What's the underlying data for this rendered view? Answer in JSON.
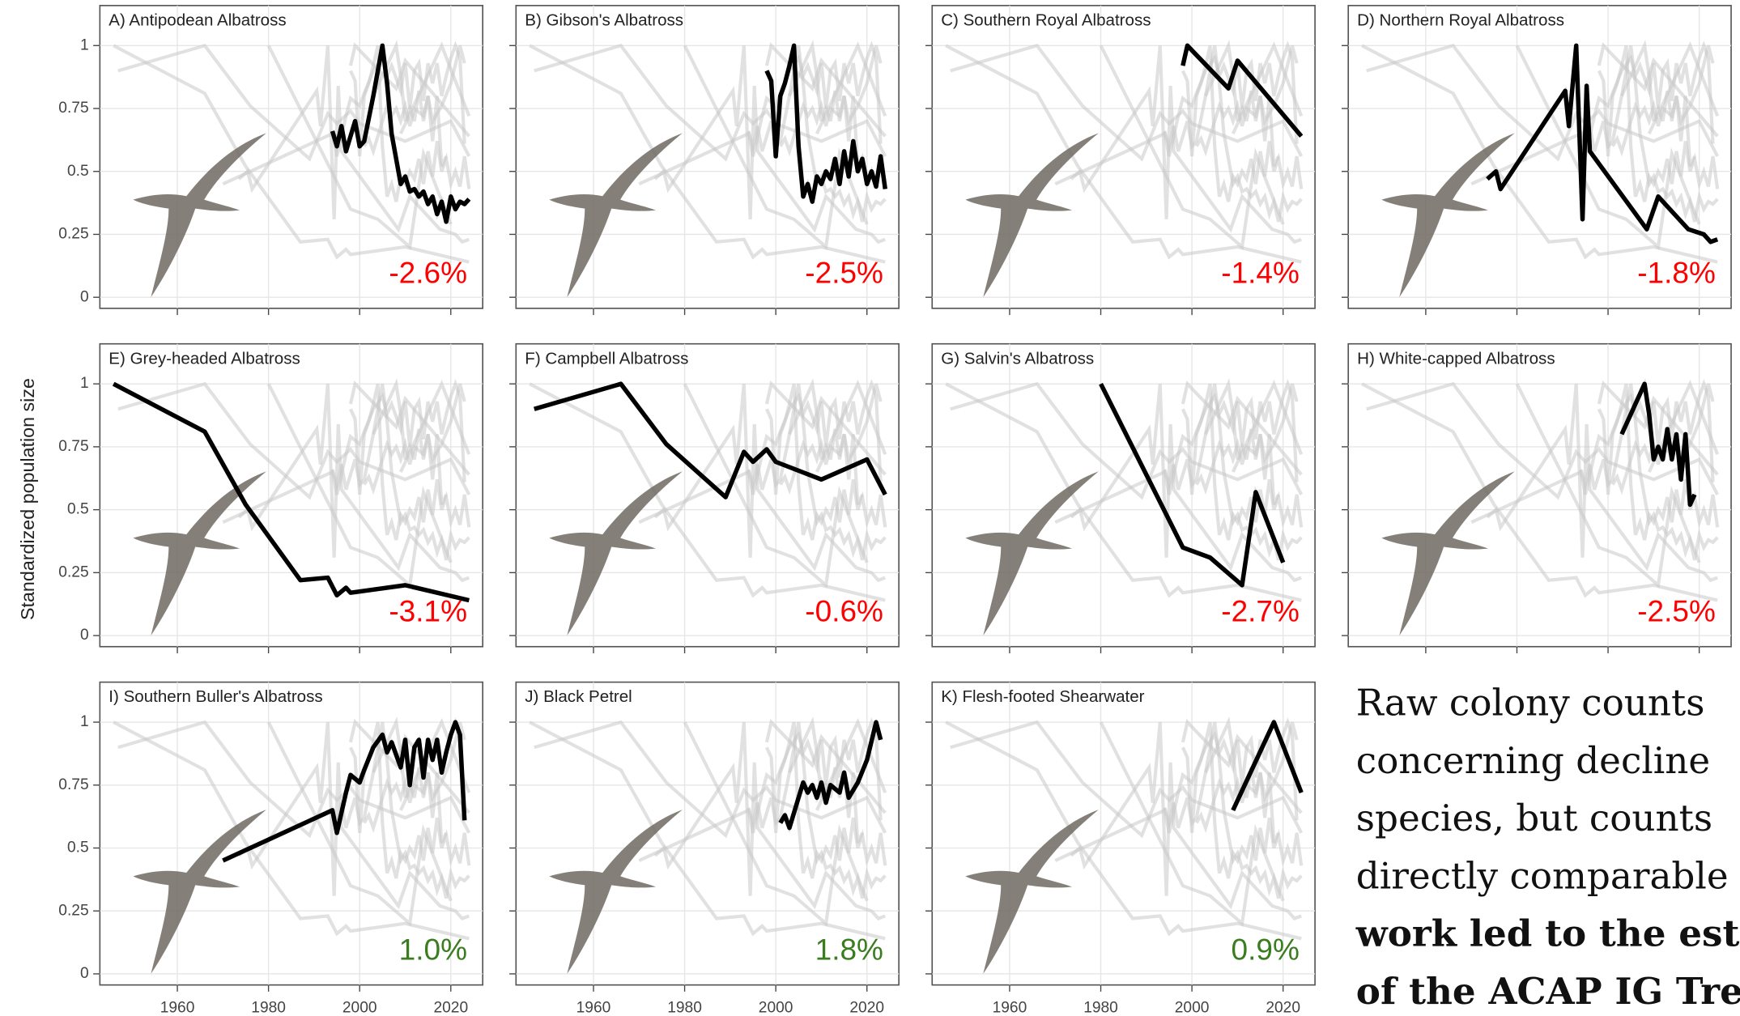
{
  "y_label": "Standardized population size",
  "side_text": {
    "lines": [
      "Raw colony counts",
      "concerning decline",
      "species, but counts",
      "directly comparable"
    ],
    "bold_lines": [
      "work led to the esta",
      "of the ACAP IG Tre"
    ]
  },
  "chart_data": [
    {
      "type": "line",
      "title": "A) Antipodean Albatross",
      "color": "#000000",
      "annotation": "-2.6%",
      "annotation_color": "#ff0000",
      "x": [
        1994,
        1995,
        1996,
        1997,
        1999,
        2000,
        2001,
        2003,
        2005,
        2006,
        2007,
        2008,
        2009,
        2010,
        2011,
        2012,
        2013,
        2014,
        2015,
        2016,
        2017,
        2018,
        2019,
        2020,
        2021,
        2022,
        2023,
        2024
      ],
      "values": [
        0.66,
        0.6,
        0.68,
        0.58,
        0.7,
        0.6,
        0.62,
        0.8,
        1.0,
        0.85,
        0.65,
        0.55,
        0.45,
        0.48,
        0.42,
        0.43,
        0.4,
        0.42,
        0.37,
        0.4,
        0.33,
        0.38,
        0.3,
        0.4,
        0.35,
        0.38,
        0.37,
        0.39
      ],
      "xlim": [
        1943,
        2027
      ],
      "ylim": [
        -0.044,
        1.159
      ],
      "xticks": [
        1960,
        1980,
        2000,
        2020
      ],
      "yticks": [
        0,
        0.25,
        0.5,
        0.75,
        1
      ],
      "grid": true
    },
    {
      "type": "line",
      "title": "B) Gibson's Albatross",
      "color": "#000000",
      "annotation": "-2.5%",
      "annotation_color": "#ff0000",
      "x": [
        1998,
        1999,
        2000,
        2001,
        2002,
        2003,
        2004,
        2005,
        2006,
        2007,
        2008,
        2009,
        2010,
        2011,
        2012,
        2013,
        2014,
        2015,
        2016,
        2017,
        2018,
        2019,
        2020,
        2021,
        2022,
        2023,
        2024
      ],
      "values": [
        0.9,
        0.86,
        0.56,
        0.8,
        0.85,
        0.92,
        1.0,
        0.6,
        0.4,
        0.45,
        0.38,
        0.48,
        0.45,
        0.5,
        0.47,
        0.55,
        0.45,
        0.58,
        0.48,
        0.62,
        0.5,
        0.55,
        0.45,
        0.5,
        0.44,
        0.56,
        0.43
      ],
      "xlim": [
        1943,
        2027
      ],
      "ylim": [
        -0.044,
        1.159
      ],
      "xticks": [
        1960,
        1980,
        2000,
        2020
      ],
      "yticks": [
        0,
        0.25,
        0.5,
        0.75,
        1
      ],
      "grid": true
    },
    {
      "type": "line",
      "title": "C) Southern Royal Albatross",
      "color": "#000000",
      "annotation": "-1.4%",
      "annotation_color": "#ff0000",
      "x": [
        1998,
        1999,
        2008,
        2010,
        2024
      ],
      "values": [
        0.92,
        1.0,
        0.83,
        0.94,
        0.64
      ],
      "xlim": [
        1943,
        2027
      ],
      "ylim": [
        -0.044,
        1.159
      ],
      "xticks": [
        1960,
        1980,
        2000,
        2020
      ],
      "yticks": [
        0,
        0.25,
        0.5,
        0.75,
        1
      ],
      "grid": true
    },
    {
      "type": "line",
      "title": "D) Northern Royal Albatross",
      "color": "#000000",
      "annotation": "-1.8%",
      "annotation_color": "#ff0000",
      "x": [
        1973.5,
        1975.4,
        1976.4,
        1990.6,
        1991.4,
        1993,
        1994.4,
        1995.3,
        1996,
        2008.5,
        2011,
        2017.6,
        2021,
        2022.5,
        2024
      ],
      "values": [
        0.47,
        0.5,
        0.43,
        0.82,
        0.68,
        1.0,
        0.31,
        0.84,
        0.58,
        0.27,
        0.4,
        0.27,
        0.25,
        0.22,
        0.23
      ],
      "xlim": [
        1943,
        2027
      ],
      "ylim": [
        -0.044,
        1.159
      ],
      "xticks": [
        1960,
        1980,
        2000,
        2020
      ],
      "yticks": [
        0,
        0.25,
        0.5,
        0.75,
        1
      ],
      "grid": true
    },
    {
      "type": "line",
      "title": "E) Grey-headed Albatross",
      "color": "#000000",
      "annotation": "-3.1%",
      "annotation_color": "#ff0000",
      "x": [
        1946,
        1966,
        1975,
        1987,
        1993,
        1995,
        1997,
        1998,
        2010,
        2024
      ],
      "values": [
        1.0,
        0.81,
        0.52,
        0.22,
        0.23,
        0.16,
        0.19,
        0.17,
        0.2,
        0.14
      ],
      "xlim": [
        1943,
        2027
      ],
      "ylim": [
        -0.044,
        1.159
      ],
      "xticks": [
        1960,
        1980,
        2000,
        2020
      ],
      "yticks": [
        0,
        0.25,
        0.5,
        0.75,
        1
      ],
      "grid": true
    },
    {
      "type": "line",
      "title": "F) Campbell Albatross",
      "color": "#000000",
      "annotation": "-0.6%",
      "annotation_color": "#ff0000",
      "x": [
        1947,
        1966,
        1976,
        1989,
        1993,
        1995,
        1998,
        2000,
        2010,
        2020,
        2024
      ],
      "values": [
        0.9,
        1.0,
        0.76,
        0.55,
        0.73,
        0.69,
        0.74,
        0.69,
        0.62,
        0.7,
        0.56
      ],
      "xlim": [
        1943,
        2027
      ],
      "ylim": [
        -0.044,
        1.159
      ],
      "xticks": [
        1960,
        1980,
        2000,
        2020
      ],
      "yticks": [
        0,
        0.25,
        0.5,
        0.75,
        1
      ],
      "grid": true
    },
    {
      "type": "line",
      "title": "G) Salvin's Albatross",
      "color": "#000000",
      "annotation": "-2.7%",
      "annotation_color": "#ff0000",
      "x": [
        1980,
        1998,
        2004,
        2011,
        2014,
        2020
      ],
      "values": [
        1.0,
        0.35,
        0.31,
        0.2,
        0.57,
        0.29
      ],
      "xlim": [
        1943,
        2027
      ],
      "ylim": [
        -0.044,
        1.159
      ],
      "xticks": [
        1960,
        1980,
        2000,
        2020
      ],
      "yticks": [
        0,
        0.25,
        0.5,
        0.75,
        1
      ],
      "grid": true
    },
    {
      "type": "line",
      "title": "H) White-capped Albatross",
      "color": "#000000",
      "annotation": "-2.5%",
      "annotation_color": "#ff0000",
      "x": [
        2003,
        2008,
        2009,
        2010,
        2011,
        2012,
        2013,
        2014,
        2015,
        2016,
        2017,
        2018,
        2019
      ],
      "values": [
        0.8,
        1.0,
        0.88,
        0.7,
        0.75,
        0.7,
        0.82,
        0.7,
        0.8,
        0.62,
        0.8,
        0.52,
        0.56
      ],
      "xlim": [
        1943,
        2027
      ],
      "ylim": [
        -0.044,
        1.159
      ],
      "xticks": [
        1960,
        1980,
        2000,
        2020
      ],
      "yticks": [
        0,
        0.25,
        0.5,
        0.75,
        1
      ],
      "grid": true
    },
    {
      "type": "line",
      "title": "I) Southern Buller's Albatross",
      "color": "#000000",
      "annotation": "1.0%",
      "annotation_color": "#3a7d1e",
      "x": [
        1970,
        1994,
        1995,
        1997,
        1998,
        2000,
        2001,
        2003,
        2005,
        2006,
        2007,
        2009,
        2010,
        2011,
        2012,
        2013,
        2014,
        2015,
        2016,
        2017,
        2018,
        2019,
        2020,
        2021,
        2022,
        2023
      ],
      "values": [
        0.45,
        0.65,
        0.56,
        0.72,
        0.79,
        0.76,
        0.81,
        0.9,
        0.95,
        0.88,
        0.92,
        0.82,
        0.93,
        0.75,
        0.9,
        0.93,
        0.78,
        0.93,
        0.85,
        0.93,
        0.8,
        0.88,
        0.95,
        1.0,
        0.95,
        0.61
      ],
      "xlim": [
        1943,
        2027
      ],
      "ylim": [
        -0.044,
        1.159
      ],
      "xticks": [
        1960,
        1980,
        2000,
        2020
      ],
      "yticks": [
        0,
        0.25,
        0.5,
        0.75,
        1
      ],
      "grid": true
    },
    {
      "type": "line",
      "title": "J) Black Petrel",
      "color": "#000000",
      "annotation": "1.8%",
      "annotation_color": "#3a7d1e",
      "x": [
        2001,
        2002,
        2003,
        2005,
        2006,
        2007,
        2008,
        2009,
        2010,
        2011,
        2012,
        2014,
        2015,
        2016,
        2018,
        2020,
        2022,
        2023
      ],
      "values": [
        0.6,
        0.63,
        0.58,
        0.7,
        0.76,
        0.72,
        0.75,
        0.7,
        0.76,
        0.68,
        0.75,
        0.72,
        0.8,
        0.7,
        0.76,
        0.85,
        1.0,
        0.93
      ],
      "xlim": [
        1943,
        2027
      ],
      "ylim": [
        -0.044,
        1.159
      ],
      "xticks": [
        1960,
        1980,
        2000,
        2020
      ],
      "yticks": [
        0,
        0.25,
        0.5,
        0.75,
        1
      ],
      "grid": true
    },
    {
      "type": "line",
      "title": "K) Flesh-footed Shearwater",
      "color": "#000000",
      "annotation": "0.9%",
      "annotation_color": "#3a7d1e",
      "x": [
        2009,
        2018,
        2024
      ],
      "values": [
        0.65,
        1.0,
        0.72
      ],
      "xlim": [
        1943,
        2027
      ],
      "ylim": [
        -0.044,
        1.159
      ],
      "xticks": [
        1960,
        1980,
        2000,
        2020
      ],
      "yticks": [
        0,
        0.25,
        0.5,
        0.75,
        1
      ],
      "grid": true
    }
  ]
}
